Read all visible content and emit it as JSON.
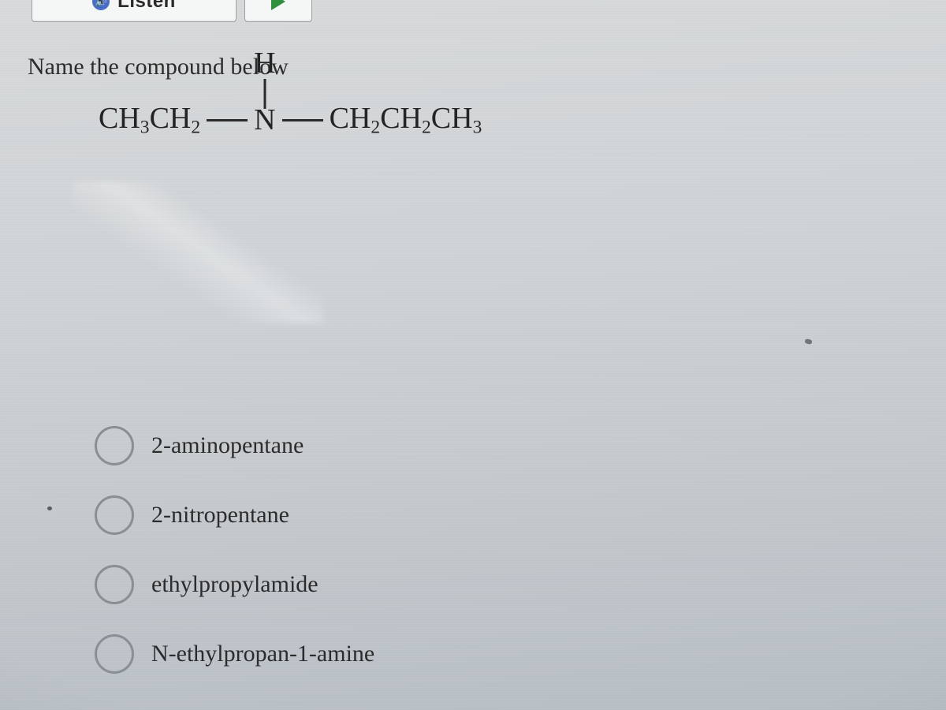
{
  "toolbar": {
    "listen_label": "Listen",
    "listen_icon": "sound-icon",
    "play_icon": "play-icon"
  },
  "question": {
    "prompt": "Name the compound below",
    "formula": {
      "left_group_html": "CH<sub>3</sub>CH<sub>2</sub>",
      "center_atom": "N",
      "top_atom": "H",
      "right_group_html": "CH<sub>2</sub>CH<sub>2</sub>CH<sub>3</sub>",
      "bond_color": "#2a2a2a",
      "font_size_pt": 29
    }
  },
  "options": [
    {
      "label": "2-aminopentane",
      "selected": false
    },
    {
      "label": "2-nitropentane",
      "selected": false
    },
    {
      "label": "ethylpropylamide",
      "selected": false
    },
    {
      "label": "N-ethylpropan-1-amine",
      "selected": false
    }
  ],
  "style": {
    "background_gradient": [
      "#d8dadb",
      "#b8bfc5"
    ],
    "text_color": "#2c2c2c",
    "radio_border_color": "#8a8f94",
    "option_font_size_pt": 23,
    "prompt_font_size_pt": 23,
    "font_family": "Georgia, serif"
  }
}
